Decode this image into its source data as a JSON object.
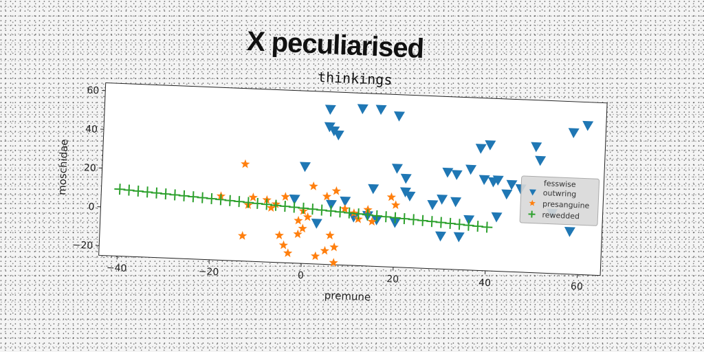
{
  "page_title": "X peculiarised",
  "chart_data": {
    "type": "scatter",
    "title": "thinkings",
    "xlabel": "premune",
    "ylabel": "moschidae",
    "xlim": [
      -44,
      65
    ],
    "ylim": [
      -25,
      64
    ],
    "xticks": [
      -40,
      -20,
      0,
      20,
      40,
      60
    ],
    "yticks": [
      -20,
      0,
      20,
      40,
      60
    ],
    "xtick_labels": [
      "−40",
      "−20",
      "0",
      "20",
      "40",
      "60"
    ],
    "ytick_labels": [
      "−20",
      "0",
      "20",
      "40",
      "60"
    ],
    "grid": false,
    "legend": {
      "title": "fesswise",
      "position": "right"
    },
    "colors": {
      "outwring": "#1f77b4",
      "presanguine": "#ff7f0e",
      "rewedded": "#2ca02c"
    },
    "series": [
      {
        "name": "outwring",
        "marker": "triangle-down",
        "x": [
          5,
          12,
          16,
          20,
          5,
          6,
          7,
          0,
          20,
          22,
          15,
          23,
          33,
          31,
          36,
          38,
          40,
          45,
          47,
          50,
          51,
          58,
          61,
          41,
          42,
          39,
          44,
          54,
          36,
          30,
          33,
          28,
          42,
          22,
          20,
          6,
          9,
          16,
          3,
          -2,
          11,
          14,
          30,
          34,
          58
        ],
        "y": [
          55,
          56,
          56,
          53,
          46,
          44,
          42,
          25,
          26,
          21,
          15,
          12,
          24,
          25,
          27,
          38,
          40,
          20,
          18,
          40,
          33,
          48,
          52,
          21,
          22,
          22,
          15,
          6,
          1,
          11,
          10,
          8,
          3,
          14,
          -2,
          6,
          8,
          -1,
          -4,
          8,
          0,
          1,
          -8,
          -8,
          -3
        ]
      },
      {
        "name": "presanguine",
        "marker": "star",
        "x": [
          -13,
          2,
          7,
          5,
          -8,
          -11,
          -12,
          -7,
          -6,
          -4,
          -1,
          0,
          1,
          -5,
          -4,
          -1,
          0,
          6,
          7,
          9,
          14,
          19,
          20,
          -3,
          3,
          5,
          7,
          -18,
          -13,
          15,
          12,
          11
        ],
        "y": [
          25,
          15,
          13,
          10,
          7,
          8,
          4,
          3,
          5,
          9,
          -3,
          2,
          -1,
          -11,
          -16,
          -10,
          -7,
          -10,
          -16,
          4,
          4,
          11,
          7,
          -20,
          -21,
          -18,
          -24,
          8,
          -12,
          -2,
          -1,
          2
        ]
      },
      {
        "name": "rewedded",
        "marker": "plus",
        "x": [
          -40,
          -38,
          -36,
          -34,
          -32,
          -30,
          -28,
          -26,
          -24,
          -22,
          -20,
          -18,
          -16,
          -14,
          -12,
          -10,
          -8,
          -6,
          -4,
          -2,
          0,
          2,
          4,
          6,
          8,
          10,
          12,
          14,
          16,
          18,
          20,
          22,
          24,
          26,
          28,
          30,
          32,
          34,
          36,
          38,
          40
        ],
        "y": [
          9.5,
          9.2,
          8.9,
          8.6,
          8.3,
          8.0,
          7.7,
          7.4,
          7.1,
          6.8,
          6.5,
          6.2,
          5.9,
          5.6,
          5.3,
          5.0,
          4.7,
          4.4,
          4.1,
          3.8,
          3.5,
          3.2,
          2.9,
          2.6,
          2.3,
          2.0,
          1.7,
          1.4,
          1.1,
          0.8,
          0.5,
          0.2,
          -0.1,
          -0.4,
          -0.7,
          -1.0,
          -1.3,
          -1.6,
          -1.9,
          -2.2,
          -2.5
        ]
      }
    ]
  }
}
